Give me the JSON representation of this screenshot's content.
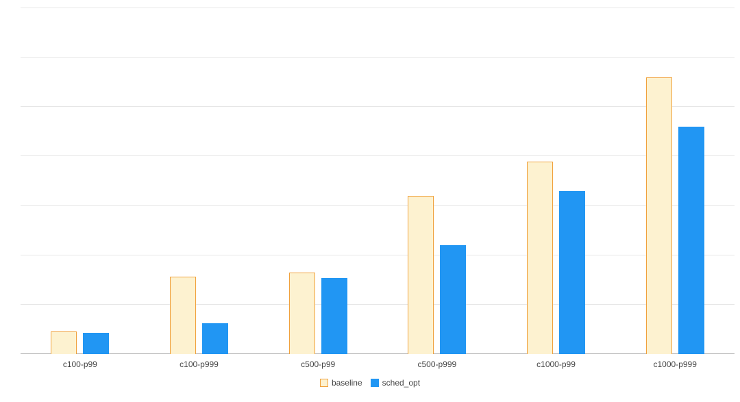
{
  "chart_data": {
    "type": "bar",
    "title": "",
    "xlabel": "",
    "ylabel": "",
    "categories": [
      "c100-p99",
      "c100-p999",
      "c500-p99",
      "c500-p999",
      "c1000-p99",
      "c1000-p999"
    ],
    "series": [
      {
        "name": "baseline",
        "values": [
          4.6,
          15.7,
          16.5,
          32,
          39,
          56
        ]
      },
      {
        "name": "sched_opt",
        "values": [
          4.3,
          6.2,
          15.4,
          22,
          33,
          46
        ]
      }
    ],
    "ylim": [
      0,
      70
    ],
    "grid_step": 10,
    "grid": true,
    "legend_position": "bottom",
    "colors": {
      "baseline_fill": "#fdf2d0",
      "baseline_border": "#f0a13c",
      "sched_opt_fill": "#2196f3",
      "gridline": "#e6e6e6",
      "axis_line": "#b7b7b7",
      "label_text": "#444444"
    }
  }
}
